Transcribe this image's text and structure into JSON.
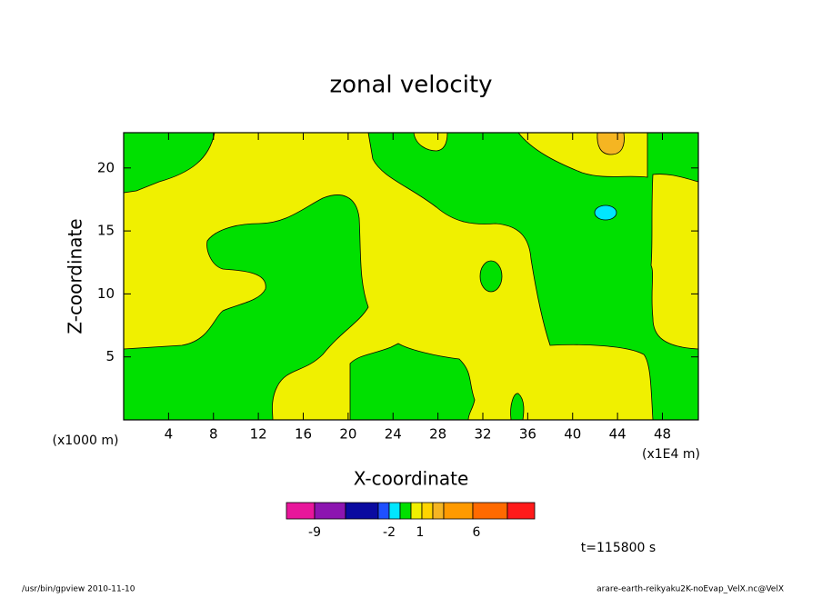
{
  "chart_data": {
    "type": "contour",
    "title": "zonal velocity",
    "x_label": "X-coordinate",
    "y_label": "Z-coordinate",
    "x_unit": "(x1E4 m)",
    "y_unit": "(x1000 m)",
    "xlim": [
      0,
      51.2
    ],
    "xticks": [
      4,
      8,
      12,
      16,
      20,
      24,
      28,
      32,
      36,
      40,
      44,
      48
    ],
    "ylim": [
      0,
      22.8
    ],
    "yticks": [
      5,
      10,
      15,
      20
    ],
    "colorbar": {
      "colors": [
        "#e8169b",
        "#8c15b0",
        "#0a0aa0",
        "#1e50ff",
        "#00e6ff",
        "#00e000",
        "#f0f000",
        "#ffd400",
        "#f5b522",
        "#ff9a00",
        "#ff6a00",
        "#ff1a1a",
        "#ff7a7a",
        "#ffbcbc"
      ],
      "labels": [
        -9,
        -2,
        1,
        6
      ]
    },
    "time_label": "t=115800 s",
    "footer_left": "/usr/bin/gpview   2010-11-10",
    "footer_right": "arare-earth-reikyaku2K-noEvap_VelX.nc@VelX"
  }
}
